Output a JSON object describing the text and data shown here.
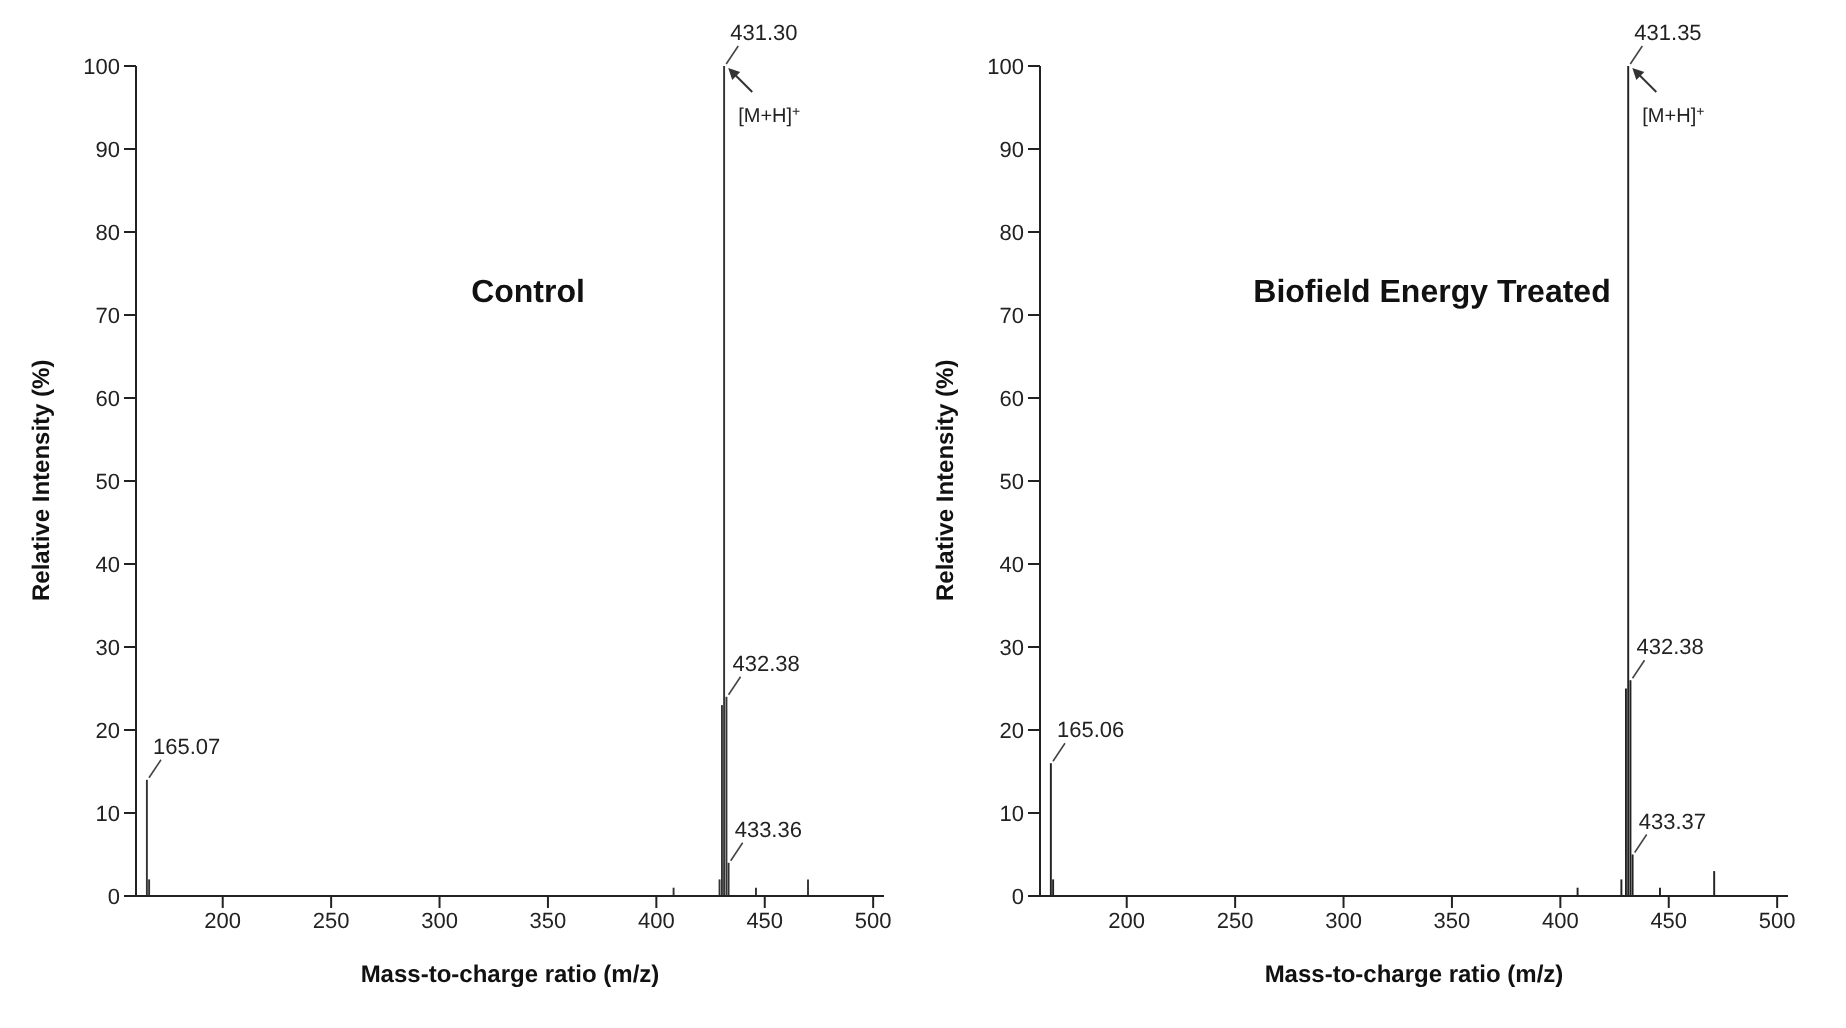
{
  "chart_data": [
    {
      "type": "bar",
      "title": "Control",
      "xlabel": "Mass-to-charge ratio (m/z)",
      "ylabel": "Relative Intensity (%)",
      "xlim": [
        160,
        505
      ],
      "xticks": [
        200,
        250,
        300,
        350,
        400,
        450,
        500
      ],
      "ylim": [
        0,
        100
      ],
      "yticks": [
        0,
        10,
        20,
        30,
        40,
        50,
        60,
        70,
        80,
        90,
        100
      ],
      "series": [
        {
          "color": "#333333",
          "x": [
            165.07,
            166.1,
            408,
            429.2,
            430.3,
            431.3,
            432.38,
            433.36,
            446,
            470
          ],
          "values": [
            14,
            2,
            1,
            2,
            23,
            100,
            24,
            4,
            1,
            2
          ]
        }
      ],
      "annotations": [
        {
          "text": "165.07",
          "x": 165.07,
          "y": 14
        },
        {
          "text": "431.30",
          "x": 431.3,
          "y": 100
        },
        {
          "text": "432.38",
          "x": 432.38,
          "y": 24
        },
        {
          "text": "433.36",
          "x": 433.36,
          "y": 4
        },
        {
          "text": "[M+H]$^{+}$",
          "x": 431.3,
          "y": 100
        }
      ]
    },
    {
      "type": "bar",
      "title": "Biofield Energy Treated",
      "xlabel": "Mass-to-charge ratio (m/z)",
      "ylabel": "Relative Intensity (%)",
      "xlim": [
        160,
        505
      ],
      "xticks": [
        200,
        250,
        300,
        350,
        400,
        450,
        500
      ],
      "ylim": [
        0,
        100
      ],
      "yticks": [
        0,
        10,
        20,
        30,
        40,
        50,
        60,
        70,
        80,
        90,
        100
      ],
      "series": [
        {
          "color": "#222222",
          "x": [
            165.06,
            166.1,
            408,
            428.2,
            430.3,
            431.35,
            432.38,
            433.37,
            446,
            471
          ],
          "values": [
            16,
            2,
            1,
            2,
            25,
            100,
            26,
            5,
            1,
            3
          ]
        }
      ],
      "annotations": [
        {
          "text": "165.06",
          "x": 165.06,
          "y": 16
        },
        {
          "text": "431.35",
          "x": 431.35,
          "y": 100
        },
        {
          "text": "432.38",
          "x": 432.38,
          "y": 26
        },
        {
          "text": "433.37",
          "x": 433.37,
          "y": 5
        },
        {
          "text": "[M+H]$^{+}$",
          "x": 431.35,
          "y": 100
        }
      ]
    }
  ]
}
